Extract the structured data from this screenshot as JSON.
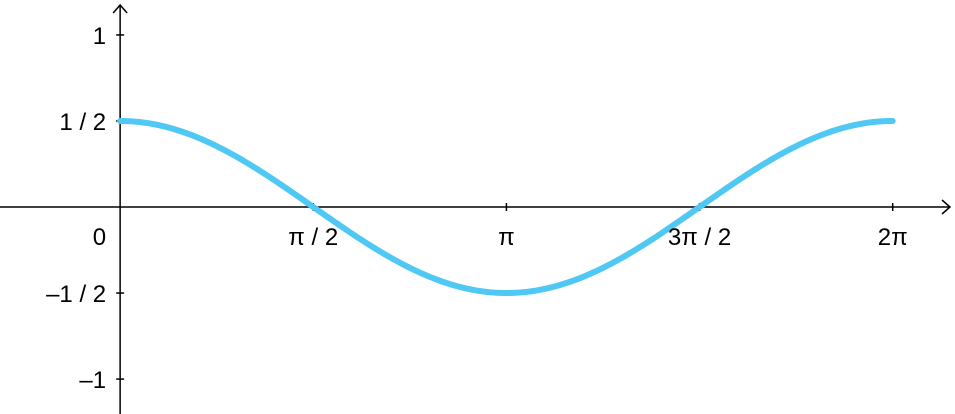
{
  "chart_data": {
    "type": "line",
    "title": "",
    "xlabel": "",
    "ylabel": "",
    "xlim": [
      -0.977,
      6.79
    ],
    "ylim": [
      -1.203,
      1.203
    ],
    "grid": false,
    "legend": "none",
    "x_ticks": [
      {
        "value": 1.5708,
        "label": "π / 2"
      },
      {
        "value": 3.1416,
        "label": "π"
      },
      {
        "value": 4.7124,
        "label": "3π / 2"
      },
      {
        "value": 6.2832,
        "label": "2π"
      }
    ],
    "y_ticks": [
      {
        "value": 1,
        "label": "1"
      },
      {
        "value": 0.5,
        "label": "1 / 2"
      },
      {
        "value": -0.5,
        "label": "–1 / 2"
      },
      {
        "value": -1,
        "label": "–1"
      }
    ],
    "origin_label": "0",
    "series": [
      {
        "color": "#4fc8f4",
        "function": "0.5*cos(x)",
        "x_range": [
          0,
          6.2832
        ],
        "x": [
          0,
          0.3927,
          0.7854,
          1.1781,
          1.5708,
          1.9635,
          2.3562,
          2.7489,
          3.1416,
          3.5343,
          3.927,
          4.3197,
          4.7124,
          5.1051,
          5.4978,
          5.8905,
          6.2832
        ],
        "y": [
          0.5,
          0.462,
          0.354,
          0.191,
          0,
          -0.191,
          -0.354,
          -0.462,
          -0.5,
          -0.462,
          -0.354,
          -0.191,
          0,
          0.191,
          0.354,
          0.462,
          0.5
        ]
      }
    ]
  }
}
